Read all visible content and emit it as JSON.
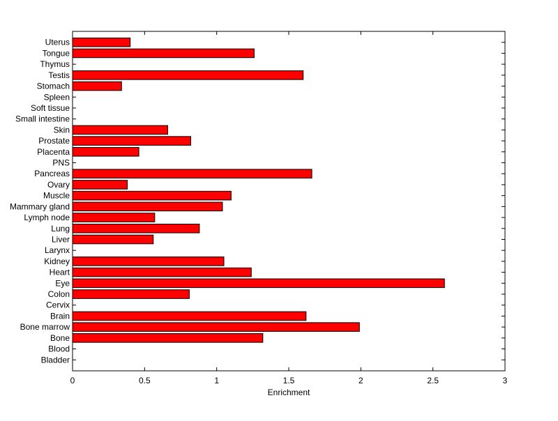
{
  "chart_data": {
    "type": "bar",
    "orientation": "horizontal",
    "categories": [
      "Bladder",
      "Blood",
      "Bone",
      "Bone marrow",
      "Brain",
      "Cervix",
      "Colon",
      "Eye",
      "Heart",
      "Kidney",
      "Larynx",
      "Liver",
      "Lung",
      "Lymph node",
      "Mammary gland",
      "Muscle",
      "Ovary",
      "Pancreas",
      "PNS",
      "Placenta",
      "Prostate",
      "Skin",
      "Small intestine",
      "Soft tissue",
      "Spleen",
      "Stomach",
      "Testis",
      "Thymus",
      "Tongue",
      "Uterus"
    ],
    "values": [
      0,
      0,
      1.32,
      1.99,
      1.62,
      0,
      0.81,
      2.58,
      1.24,
      1.05,
      0,
      0.56,
      0.88,
      0.57,
      1.04,
      1.1,
      0.38,
      1.66,
      0,
      0.46,
      0.82,
      0.66,
      0,
      0,
      0,
      0.34,
      1.6,
      0,
      1.26,
      0.4
    ],
    "title": "",
    "xlabel": "Enrichment",
    "ylabel": "",
    "xlim": [
      0,
      3
    ],
    "xticks": [
      0,
      0.5,
      1,
      1.5,
      2,
      2.5,
      3
    ],
    "xtick_labels": [
      "0",
      "0.5",
      "1",
      "1.5",
      "2",
      "2.5",
      "3"
    ],
    "grid": false,
    "legend": "none",
    "bar_color": "#ff0000",
    "edge_color": "#000000"
  }
}
